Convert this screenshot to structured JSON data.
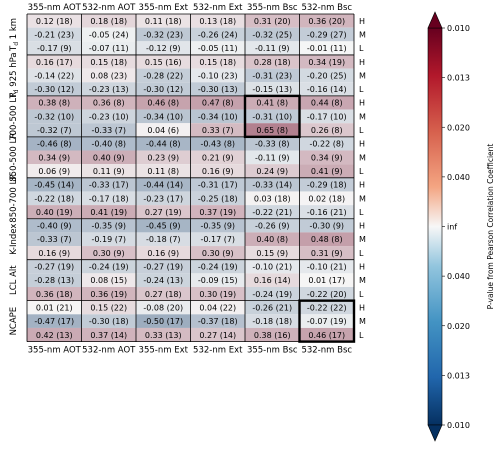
{
  "chart_data": {
    "type": "heatmap",
    "columns": [
      "355-nm AOT",
      "532-nm AOT",
      "355-nm Ext",
      "532-nm Ext",
      "355-nm Bsc",
      "532-nm Bsc"
    ],
    "row_groups": [
      "Tₐ 1 km",
      "Tₐ 925 hPa",
      "700-500 LR",
      "850-500 LR",
      "850-700 LR",
      "K-Index",
      "LCL Alt",
      "NCAPE"
    ],
    "row_groups_display": [
      "Td 1 km",
      "Td 925 hPa",
      "700-500 LR",
      "850-500 LR",
      "850-700 LR",
      "K-Index",
      "LCL Alt",
      "NCAPE"
    ],
    "sub_rows": [
      "H",
      "M",
      "L"
    ],
    "cells": [
      [
        "0.12 (18)",
        "0.18 (18)",
        "0.11 (18)",
        "0.13 (18)",
        "0.31 (20)",
        "0.36 (20)"
      ],
      [
        "-0.21 (23)",
        "-0.05 (24)",
        "-0.32 (23)",
        "-0.26 (24)",
        "-0.32 (25)",
        "-0.29 (27)"
      ],
      [
        "-0.17 (9)",
        "-0.07 (11)",
        "-0.12 (9)",
        "-0.05 (11)",
        "-0.11 (9)",
        "-0.01 (11)"
      ],
      [
        "0.16 (17)",
        "0.15 (18)",
        "0.15 (16)",
        "0.15 (18)",
        "0.28 (18)",
        "0.34 (19)"
      ],
      [
        "-0.14 (22)",
        "0.08 (23)",
        "-0.28 (22)",
        "-0.10 (23)",
        "-0.31 (23)",
        "-0.20 (25)"
      ],
      [
        "-0.30 (12)",
        "-0.23 (13)",
        "-0.30 (12)",
        "-0.30 (13)",
        "-0.15 (13)",
        "-0.16 (14)"
      ],
      [
        "0.38 (8)",
        "0.36 (8)",
        "0.46 (8)",
        "0.47 (8)",
        "0.41 (8)",
        "0.44 (8)"
      ],
      [
        "-0.32 (10)",
        "-0.23 (10)",
        "-0.34 (10)",
        "-0.34 (10)",
        "-0.31 (10)",
        "-0.17 (10)"
      ],
      [
        "-0.32 (7)",
        "-0.33 (7)",
        "0.04 (6)",
        "0.33 (7)",
        "0.65 (8)",
        "0.26 (8)"
      ],
      [
        "-0.46 (8)",
        "-0.40 (8)",
        "-0.44 (8)",
        "-0.43 (8)",
        "-0.33 (8)",
        "-0.22 (8)"
      ],
      [
        "0.34 (9)",
        "0.40 (9)",
        "0.23 (9)",
        "0.21 (9)",
        "-0.11 (9)",
        "0.34 (9)"
      ],
      [
        "0.06 (9)",
        "0.11 (9)",
        "0.11 (8)",
        "0.16 (9)",
        "0.24 (9)",
        "0.41 (9)"
      ],
      [
        "-0.45 (14)",
        "-0.33 (17)",
        "-0.44 (14)",
        "-0.31 (17)",
        "-0.33 (14)",
        "-0.29 (18)"
      ],
      [
        "-0.22 (18)",
        "-0.17 (18)",
        "-0.23 (17)",
        "-0.25 (18)",
        "0.03 (18)",
        "0.02 (18)"
      ],
      [
        "0.40 (19)",
        "0.41 (19)",
        "0.27 (19)",
        "0.37 (19)",
        "-0.22 (21)",
        "-0.16 (21)"
      ],
      [
        "-0.40 (9)",
        "-0.35 (9)",
        "-0.45 (9)",
        "-0.35 (9)",
        "-0.26 (9)",
        "-0.30 (9)"
      ],
      [
        "-0.33 (7)",
        "-0.19 (7)",
        "-0.18 (7)",
        "-0.17 (7)",
        "0.40 (8)",
        "0.48 (8)"
      ],
      [
        "0.16 (9)",
        "0.30 (9)",
        "0.16 (9)",
        "0.30 (9)",
        "0.15 (9)",
        "0.31 (9)"
      ],
      [
        "-0.27 (19)",
        "-0.24 (19)",
        "-0.27 (19)",
        "-0.24 (19)",
        "-0.10 (21)",
        "-0.10 (21)"
      ],
      [
        "-0.28 (13)",
        "0.08 (15)",
        "-0.24 (13)",
        "-0.09 (15)",
        "0.16 (14)",
        "0.01 (17)"
      ],
      [
        "0.36 (18)",
        "0.36 (19)",
        "0.27 (18)",
        "0.30 (19)",
        "-0.24 (19)",
        "-0.22 (20)"
      ],
      [
        "0.01 (21)",
        "0.15 (22)",
        "-0.08 (20)",
        "0.04 (22)",
        "-0.26 (21)",
        "-0.22 (22)"
      ],
      [
        "-0.47 (17)",
        "-0.30 (18)",
        "-0.50 (17)",
        "-0.37 (18)",
        "-0.18 (18)",
        "-0.07 (19)"
      ],
      [
        "0.42 (13)",
        "0.37 (14)",
        "0.33 (13)",
        "0.27 (14)",
        "0.38 (16)",
        "0.46 (17)"
      ]
    ],
    "highlight_boxes": [
      {
        "row_group": "700-500 LR",
        "column": "355-nm Bsc"
      },
      {
        "row_group": "NCAPE",
        "column": "532-nm Bsc"
      }
    ],
    "colorbar": {
      "label": "P-value from Pearson Correlation Coefficient",
      "tick_labels": [
        "0.010",
        "0.013",
        "0.020",
        "0.040",
        "inf",
        "0.040",
        "0.020",
        "0.013",
        "0.010"
      ],
      "colors": {
        "positive": "#67001f",
        "zero": "#f7f7f7",
        "negative": "#053061"
      }
    }
  }
}
